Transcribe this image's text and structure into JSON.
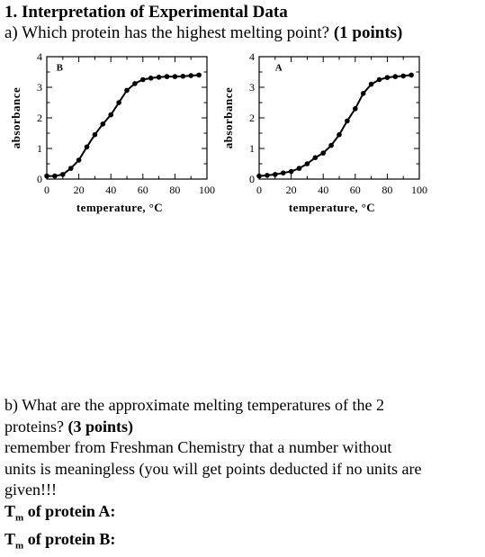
{
  "heading": "1. Interpretation of Experimental Data",
  "question_a": {
    "text": "a) Which protein has the highest melting point?",
    "points": "(1 points)"
  },
  "chart_data": [
    {
      "type": "line",
      "panel_label": "B",
      "xlabel": "temperature, °C",
      "ylabel": "absorbance",
      "xlim": [
        0,
        100
      ],
      "ylim": [
        0,
        4
      ],
      "x_ticks": [
        0,
        20,
        40,
        60,
        80,
        100
      ],
      "y_ticks": [
        0,
        1,
        2,
        3,
        4
      ],
      "grid": false,
      "markers": "filled-circle",
      "series": [
        {
          "x": [
            0,
            5,
            10,
            15,
            20,
            25,
            30,
            35,
            40,
            45,
            50,
            55,
            60,
            65,
            70,
            75,
            80,
            85,
            90,
            95
          ],
          "y": [
            0.1,
            0.1,
            0.15,
            0.35,
            0.62,
            1.05,
            1.45,
            1.8,
            2.1,
            2.5,
            2.9,
            3.12,
            3.25,
            3.3,
            3.33,
            3.35,
            3.35,
            3.36,
            3.38,
            3.4
          ]
        }
      ]
    },
    {
      "type": "line",
      "panel_label": "A",
      "xlabel": "temperature, °C",
      "ylabel": "absorbance",
      "xlim": [
        0,
        100
      ],
      "ylim": [
        0,
        4
      ],
      "x_ticks": [
        0,
        20,
        40,
        60,
        80,
        100
      ],
      "y_ticks": [
        0,
        1,
        2,
        3,
        4
      ],
      "grid": false,
      "markers": "filled-circle",
      "series": [
        {
          "x": [
            0,
            5,
            10,
            15,
            20,
            25,
            30,
            35,
            40,
            45,
            50,
            55,
            60,
            65,
            70,
            75,
            80,
            85,
            90,
            95
          ],
          "y": [
            0.1,
            0.12,
            0.15,
            0.2,
            0.25,
            0.35,
            0.5,
            0.7,
            0.85,
            1.1,
            1.45,
            1.9,
            2.3,
            2.8,
            3.1,
            3.25,
            3.32,
            3.35,
            3.37,
            3.4
          ]
        }
      ]
    }
  ],
  "part_b": {
    "line1": "b) What are the approximate melting temperatures of the 2",
    "line2_text": "proteins?",
    "line2_points": "(3 points)",
    "line3": "remember from Freshman Chemistry that a number without",
    "line4": "units is meaningless (you will get points deducted if no units are",
    "line5": "given!!!",
    "tm_a_T": "T",
    "tm_a_sub": "m",
    "tm_a_rest": " of protein A:",
    "tm_b_T": "T",
    "tm_b_sub": "m",
    "tm_b_rest": " of protein B:"
  }
}
